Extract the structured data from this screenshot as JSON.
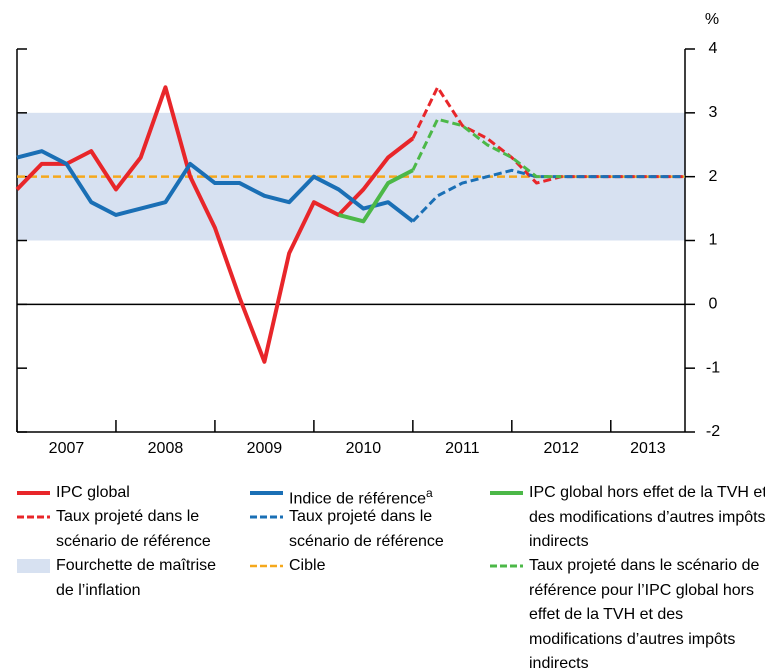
{
  "chart_data": {
    "type": "line",
    "y_unit": "%",
    "x": [
      2007,
      2007.25,
      2007.5,
      2007.75,
      2008,
      2008.25,
      2008.5,
      2008.75,
      2009,
      2009.25,
      2009.5,
      2009.75,
      2010,
      2010.25,
      2010.5,
      2010.75,
      2011,
      2011.25,
      2011.5,
      2011.75,
      2012,
      2012.25,
      2012.5,
      2012.75,
      2013,
      2013.25,
      2013.5,
      2013.75
    ],
    "xlim": [
      2007,
      2013.75
    ],
    "xticks": [
      2007,
      2008,
      2009,
      2010,
      2011,
      2012,
      2013
    ],
    "ylim": [
      -2,
      4
    ],
    "yticks": [
      -2,
      -1,
      0,
      1,
      2,
      3,
      4
    ],
    "band": {
      "name": "Fourchette de maîtrise de l’inflation",
      "color": "#d7e1f1",
      "range": [
        1,
        3
      ]
    },
    "target": {
      "name": "Cible",
      "color": "#f5a81c",
      "value": 2
    },
    "series": [
      {
        "name": "IPC global",
        "color": "#e8262a",
        "dashed": false,
        "values": [
          1.8,
          2.2,
          2.2,
          2.4,
          1.8,
          2.3,
          3.4,
          2.0,
          1.2,
          0.1,
          -0.9,
          0.8,
          1.6,
          1.4,
          1.8,
          2.3,
          2.6,
          null,
          null,
          null,
          null,
          null,
          null,
          null,
          null,
          null,
          null,
          null
        ]
      },
      {
        "name": "Taux projeté dans le scénario de référence",
        "color": "#e8262a",
        "dashed": true,
        "values": [
          null,
          null,
          null,
          null,
          null,
          null,
          null,
          null,
          null,
          null,
          null,
          null,
          null,
          null,
          null,
          null,
          2.6,
          3.4,
          2.8,
          2.6,
          2.3,
          1.9,
          2.0,
          2.0,
          2.0,
          2.0,
          2.0,
          2.0
        ]
      },
      {
        "name": "Indice de référence",
        "note": "a",
        "color": "#1a6fb5",
        "dashed": false,
        "values": [
          2.3,
          2.4,
          2.2,
          1.6,
          1.4,
          1.5,
          1.6,
          2.2,
          1.9,
          1.9,
          1.7,
          1.6,
          2.0,
          1.8,
          1.5,
          1.6,
          1.3,
          null,
          null,
          null,
          null,
          null,
          null,
          null,
          null,
          null,
          null,
          null
        ]
      },
      {
        "name": "Taux projeté dans le scénario de référence",
        "color": "#1a6fb5",
        "dashed": true,
        "values": [
          null,
          null,
          null,
          null,
          null,
          null,
          null,
          null,
          null,
          null,
          null,
          null,
          null,
          null,
          null,
          null,
          1.3,
          1.7,
          1.9,
          2.0,
          2.1,
          2.0,
          2.0,
          2.0,
          2.0,
          2.0,
          2.0,
          2.0
        ]
      },
      {
        "name": "IPC global hors effet de la TVH et des modifications d’autres impôts indirects",
        "color": "#4cb848",
        "dashed": false,
        "values": [
          null,
          null,
          null,
          null,
          null,
          null,
          null,
          null,
          null,
          null,
          null,
          null,
          null,
          1.4,
          1.3,
          1.9,
          2.1,
          null,
          null,
          null,
          null,
          null,
          null,
          null,
          null,
          null,
          null,
          null
        ]
      },
      {
        "name": "Taux projeté dans le scénario de référence pour l’IPC global hors effet de la TVH et des modifications d’autres impôts indirects",
        "color": "#4cb848",
        "dashed": true,
        "values": [
          null,
          null,
          null,
          null,
          null,
          null,
          null,
          null,
          null,
          null,
          null,
          null,
          null,
          null,
          null,
          null,
          2.1,
          2.9,
          2.8,
          2.5,
          2.3,
          2.0,
          2.0,
          null,
          null,
          null,
          null,
          null
        ]
      }
    ]
  }
}
